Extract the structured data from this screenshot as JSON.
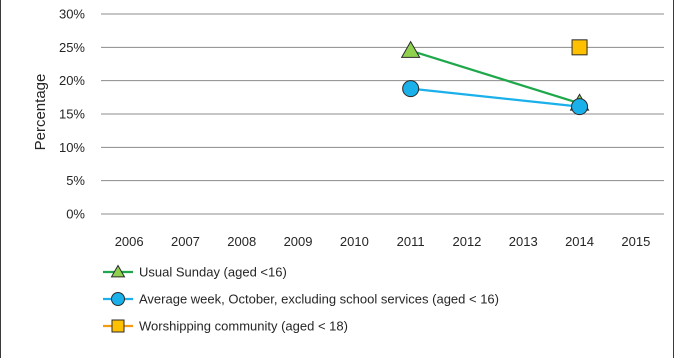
{
  "chart_data": {
    "type": "line",
    "title": "",
    "ylabel": "Percentage",
    "xlabel": "",
    "categories": [
      "2006",
      "2007",
      "2008",
      "2009",
      "2010",
      "2011",
      "2012",
      "2013",
      "2014",
      "2015"
    ],
    "y_ticks": [
      "0%",
      "5%",
      "10%",
      "15%",
      "20%",
      "25%",
      "30%"
    ],
    "ylim": [
      0,
      30
    ],
    "grid": "horizontal",
    "legend_position": "bottom",
    "series": [
      {
        "name": "Usual Sunday (aged <16)",
        "color": "#1fa84b",
        "marker": "triangle",
        "marker_fill": "#8fd14f",
        "points": [
          {
            "x": "2011",
            "y": 24.5
          },
          {
            "x": "2014",
            "y": 16.6
          }
        ]
      },
      {
        "name": "Average week, October, excluding school services (aged < 16)",
        "color": "#1ab0ea",
        "marker": "circle",
        "marker_fill": "#1ab0ea",
        "points": [
          {
            "x": "2011",
            "y": 18.8
          },
          {
            "x": "2014",
            "y": 16.1
          }
        ]
      },
      {
        "name": "Worshipping community (aged < 18)",
        "color": "#f39c12",
        "marker": "square",
        "marker_fill": "#ffc000",
        "points": [
          {
            "x": "2014",
            "y": 25.0
          }
        ]
      }
    ]
  }
}
